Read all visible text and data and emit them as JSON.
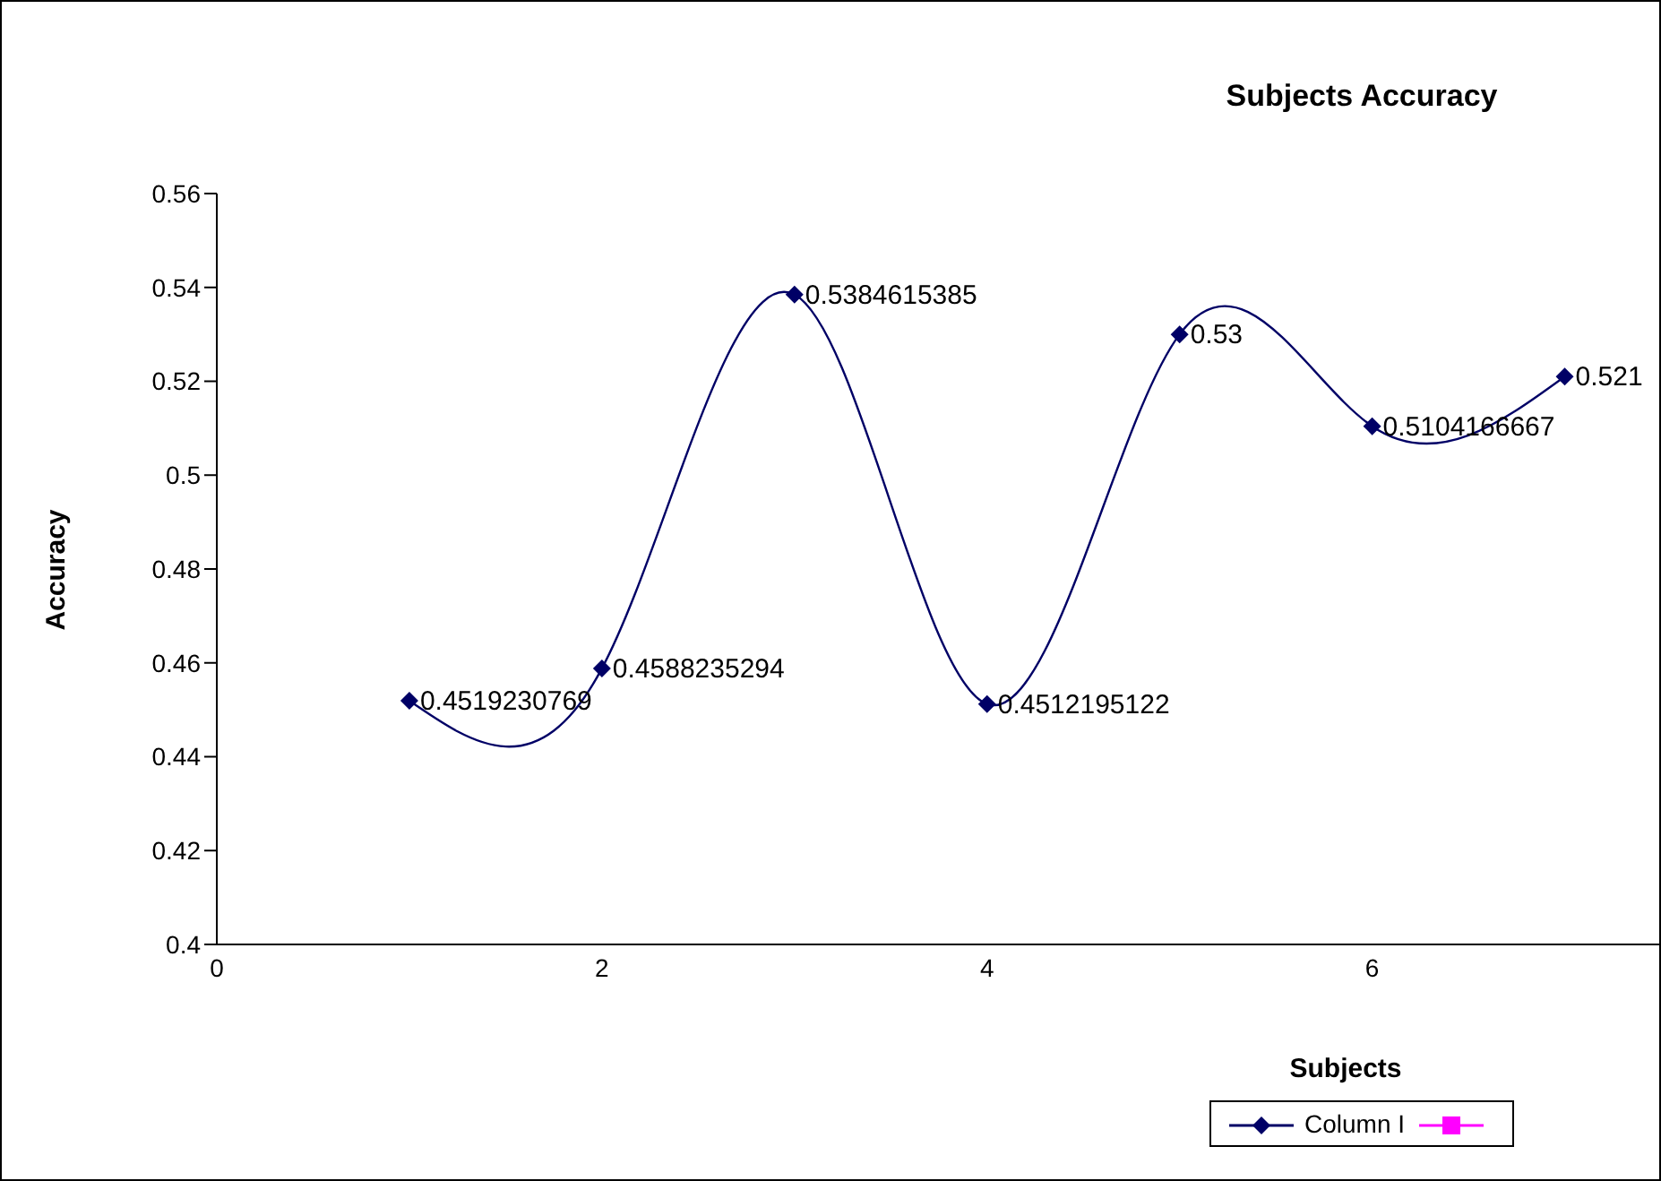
{
  "chart_data": {
    "type": "line",
    "title": "Subjects Accuracy",
    "xlabel": "Subjects",
    "ylabel": "Accuracy",
    "x": [
      1,
      2,
      3,
      4,
      5,
      6,
      7
    ],
    "series": [
      {
        "name": "Column I",
        "color": "#000066",
        "marker": "diamond",
        "values": [
          0.4519230769,
          0.4588235294,
          0.5384615385,
          0.4512195122,
          0.53,
          0.5104166667,
          0.521
        ],
        "value_labels": [
          "0.4519230769",
          "0.4588235294",
          "0.5384615385",
          "0.4512195122",
          "0.53",
          "0.5104166667",
          "0.521"
        ]
      },
      {
        "color": "#ff00ff",
        "marker": "square",
        "values": [
          null,
          null,
          null,
          null,
          null,
          null,
          null
        ]
      }
    ],
    "xlim": [
      0,
      7.5
    ],
    "xticks": [
      0,
      2,
      4,
      6
    ],
    "ylim": [
      0.4,
      0.56
    ],
    "yticks": [
      0.4,
      0.42,
      0.44,
      0.46,
      0.48,
      0.5,
      0.52,
      0.54,
      0.56
    ],
    "legend": "bottom right"
  }
}
